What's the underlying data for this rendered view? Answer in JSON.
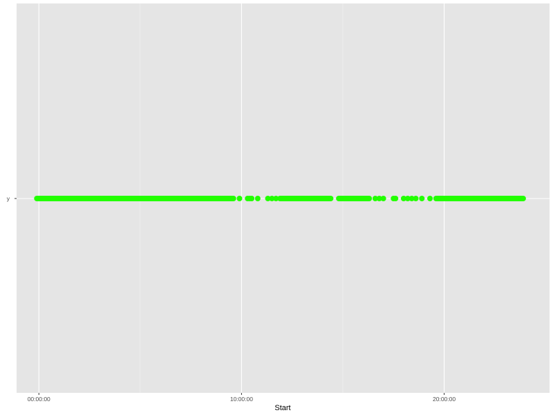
{
  "chart_data": {
    "type": "scatter",
    "title": "",
    "xlabel": "Start",
    "ylabel": "",
    "x_axis": {
      "type": "time",
      "range_hours": [
        -1.1,
        25.2
      ],
      "major_ticks_hours": [
        0,
        10,
        20
      ],
      "major_tick_labels": [
        "00:00:00",
        "10:00:00",
        "20:00:00"
      ],
      "minor_ticks_hours": [
        5,
        15
      ]
    },
    "y_axis": {
      "type": "categorical",
      "categories": [
        "y"
      ]
    },
    "grid": true,
    "panel_background": "#e5e5e5",
    "grid_color": "#ffffff",
    "point_color": "#22ff00",
    "series": [
      {
        "category": "y",
        "dense_segments_hours": [
          [
            -0.1,
            9.6
          ],
          [
            11.9,
            14.4
          ],
          [
            14.8,
            16.3
          ],
          [
            19.6,
            23.9
          ]
        ],
        "isolated_points_hours": [
          9.9,
          10.3,
          10.4,
          10.5,
          10.8,
          11.3,
          11.5,
          11.7,
          16.6,
          16.8,
          17.0,
          17.5,
          17.6,
          18.0,
          18.2,
          18.4,
          18.6,
          18.9,
          19.3
        ]
      }
    ]
  }
}
